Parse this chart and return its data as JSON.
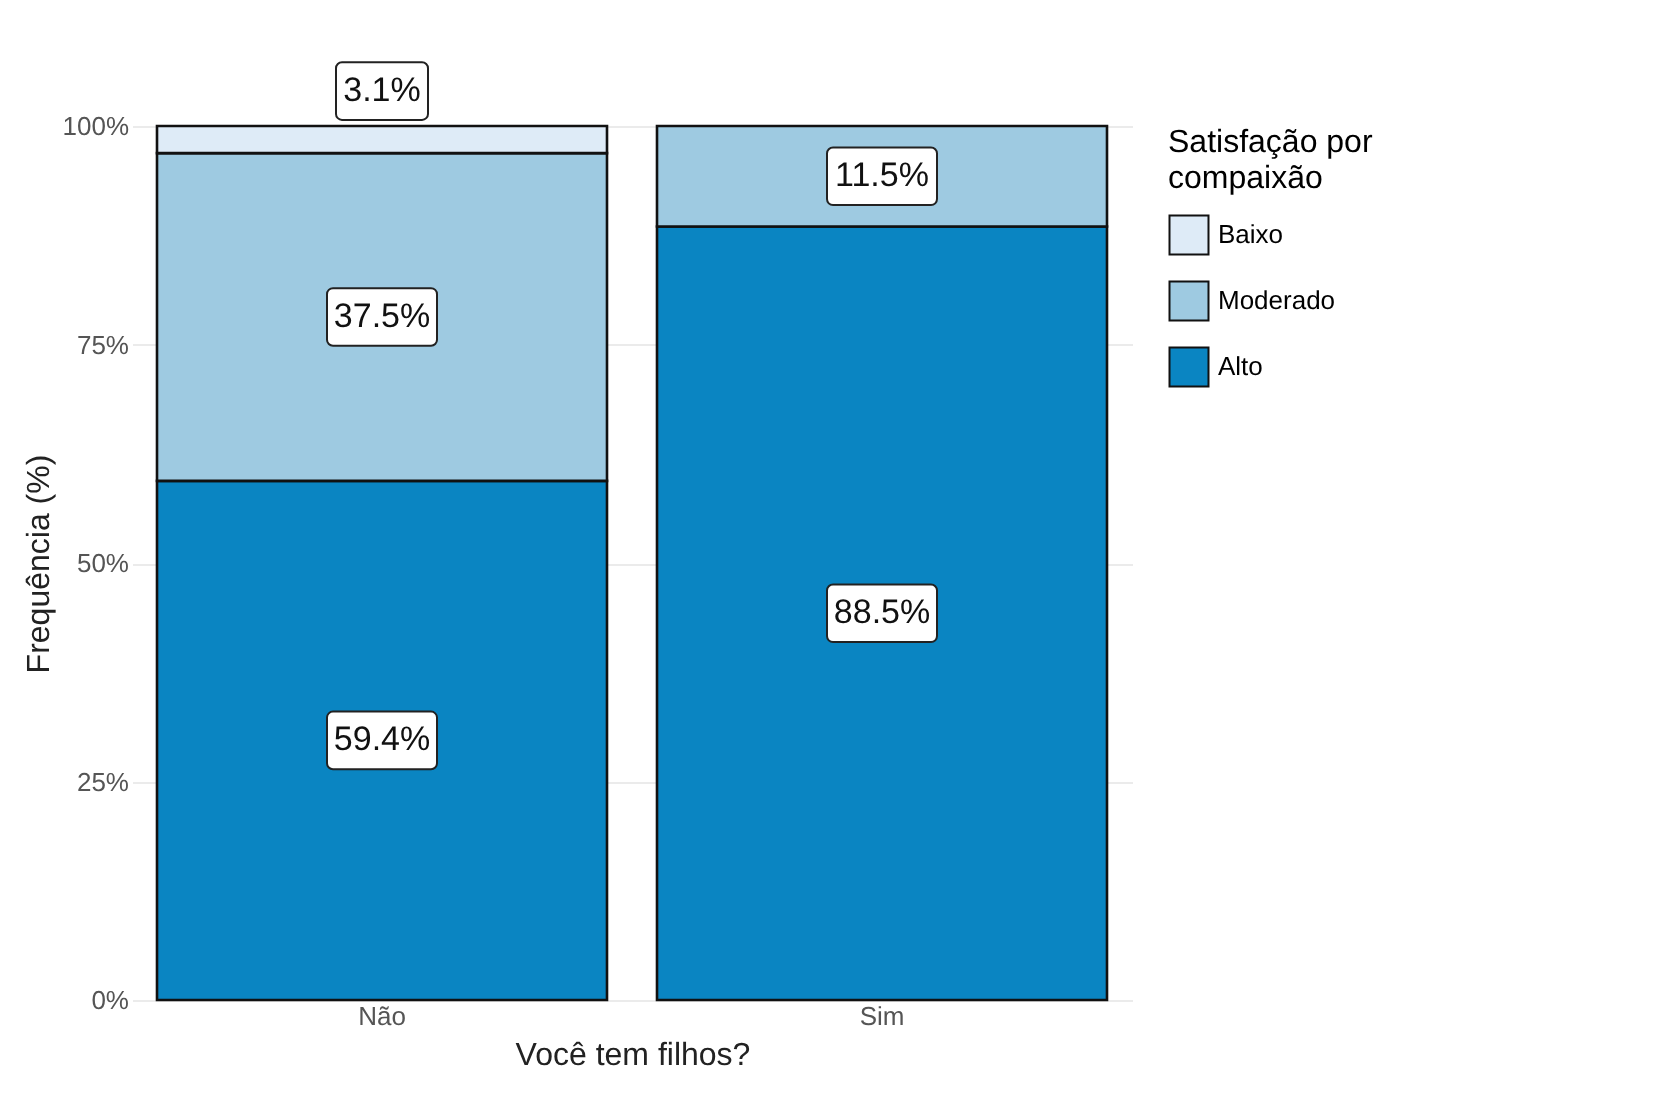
{
  "chart_data": {
    "type": "bar",
    "stacked": true,
    "xlabel": "Você tem filhos?",
    "ylabel": "Frequência (%)",
    "legend_title": "Satisfação por compaixão",
    "categories": [
      "Não",
      "Sim"
    ],
    "series": [
      {
        "name": "Alto",
        "color": "#0a85c2",
        "values": [
          59.4,
          88.5
        ],
        "value_labels": [
          "59.4%",
          "88.5%"
        ]
      },
      {
        "name": "Moderado",
        "color": "#9ecae1",
        "values": [
          37.5,
          11.5
        ],
        "value_labels": [
          "37.5%",
          "11.5%"
        ]
      },
      {
        "name": "Baixo",
        "color": "#deebf7",
        "values": [
          3.1,
          null
        ],
        "value_labels": [
          "3.1%",
          null
        ]
      }
    ],
    "ylim": [
      0,
      100
    ],
    "yticks": [
      {
        "value": 0,
        "label": "0%"
      },
      {
        "value": 25,
        "label": "25%"
      },
      {
        "value": 50,
        "label": "50%"
      },
      {
        "value": 75,
        "label": "75%"
      },
      {
        "value": 100,
        "label": "100%"
      }
    ],
    "grid": true,
    "legend": "right"
  }
}
